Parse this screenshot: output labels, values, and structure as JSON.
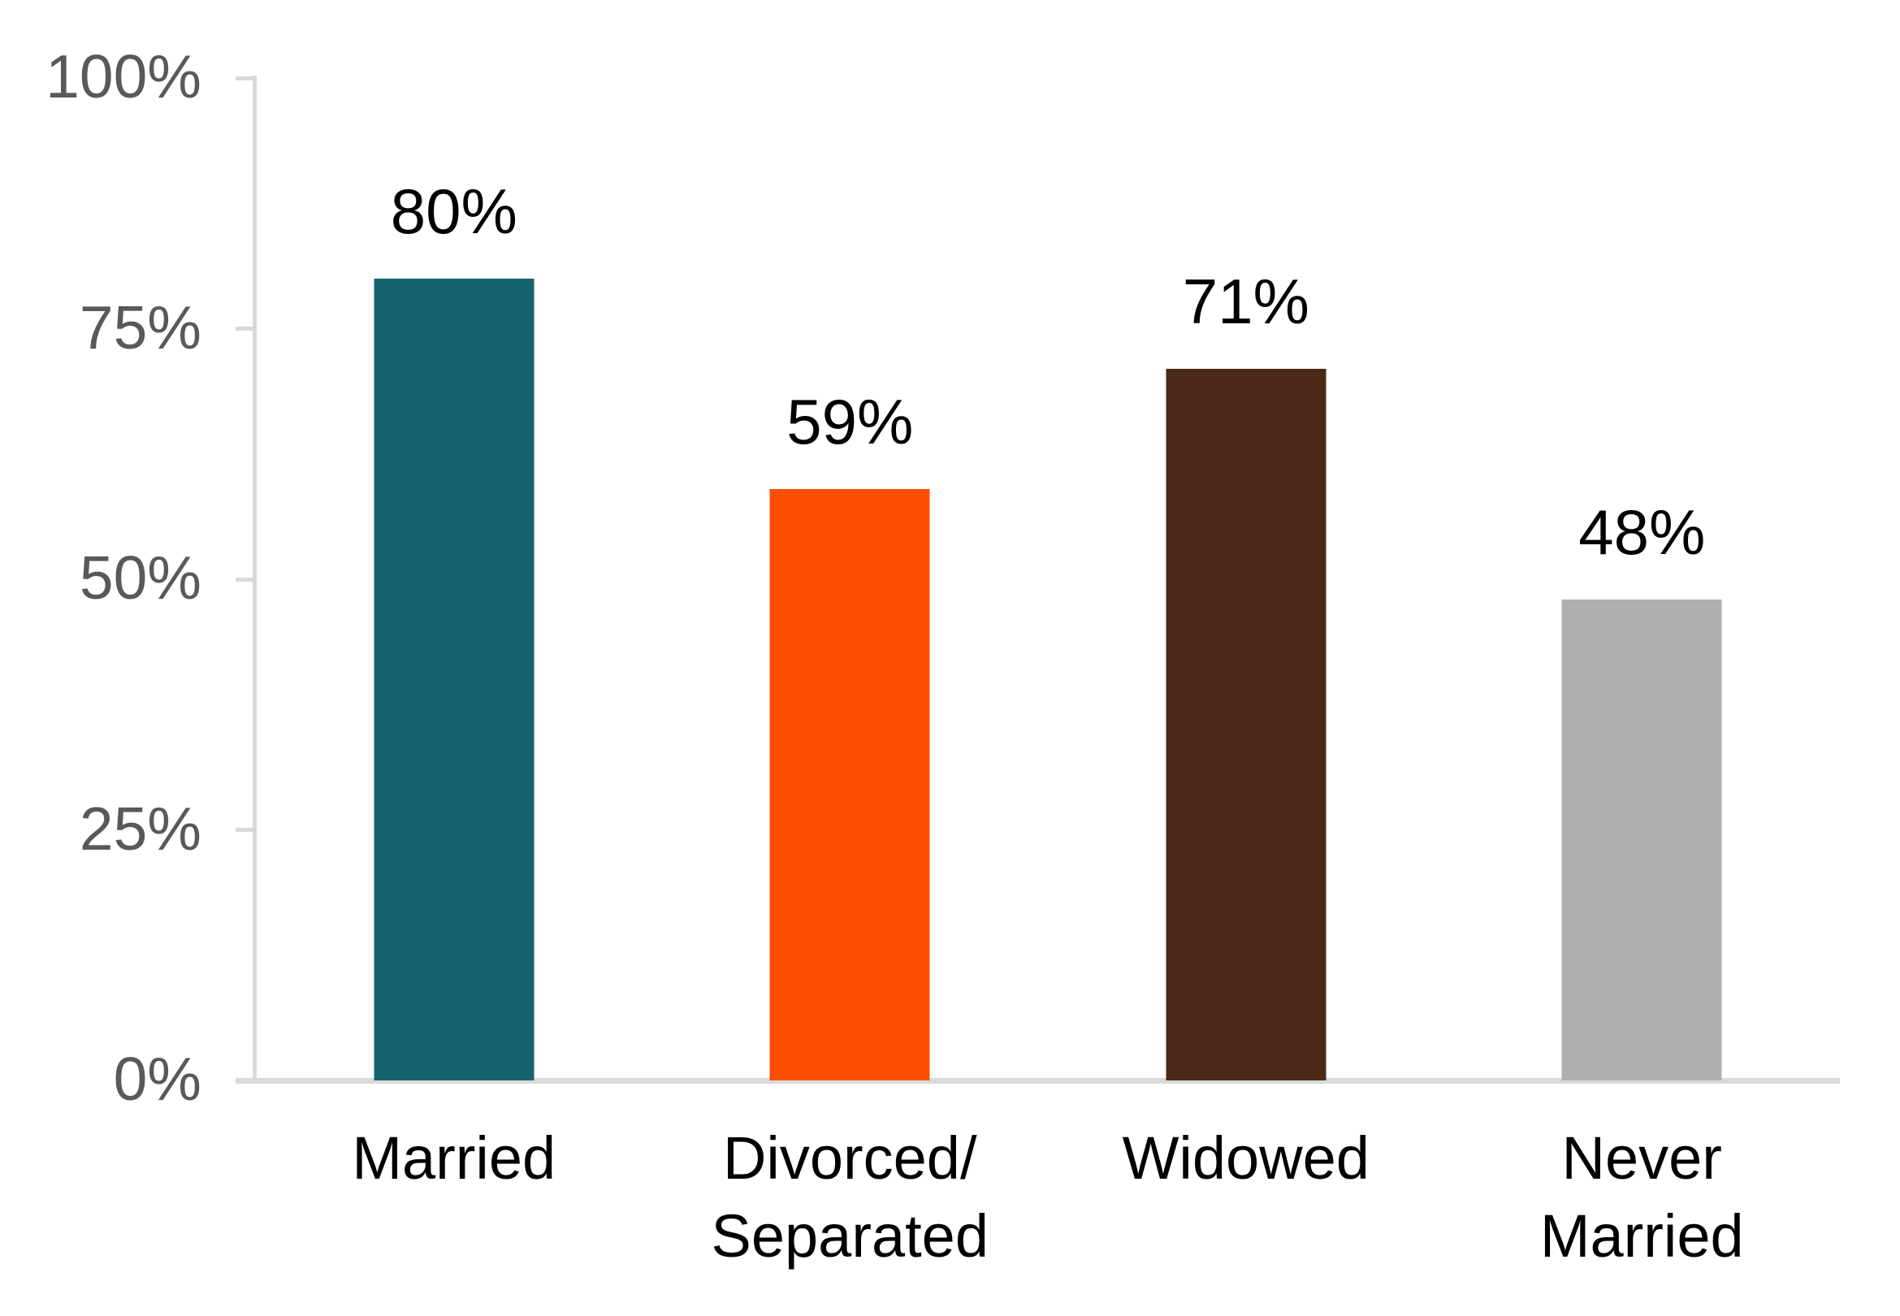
{
  "chart_data": {
    "type": "bar",
    "title": "",
    "xlabel": "",
    "ylabel": "",
    "categories": [
      "Married",
      "Divorced/\nSeparated",
      "Widowed",
      "Never\nMarried"
    ],
    "values": [
      80,
      59,
      71,
      48
    ],
    "value_labels": [
      "80%",
      "59%",
      "71%",
      "48%"
    ],
    "bar_colors": [
      "#15636E",
      "#FB4F00",
      "#4C2817",
      "#AFAFAF"
    ],
    "y_axis": {
      "min": 0,
      "max": 100,
      "ticks": [
        {
          "value": 0,
          "label": "0%"
        },
        {
          "value": 25,
          "label": "25%"
        },
        {
          "value": 50,
          "label": "50%"
        },
        {
          "value": 75,
          "label": "75%"
        },
        {
          "value": 100,
          "label": "100%"
        }
      ]
    },
    "grid": false,
    "legend": false
  },
  "colors": {
    "background": "#FFFFFF",
    "axis": "#D9D9D9",
    "y_tick_label": "#595959",
    "value_label": "#000000",
    "category_label": "#000000"
  }
}
